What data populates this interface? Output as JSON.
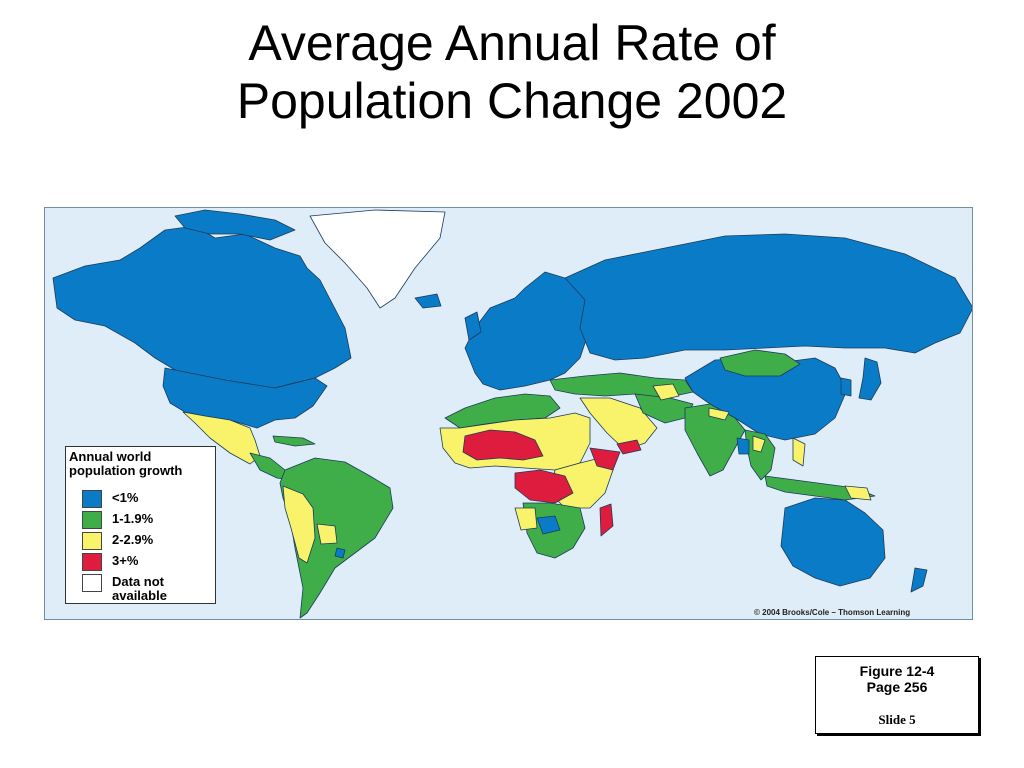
{
  "slide": {
    "title_line1": "Average Annual Rate of",
    "title_line2": "Population Change 2002"
  },
  "map": {
    "ocean_color": "#deedf8",
    "legend": {
      "title_line1": "Annual world",
      "title_line2": "population growth",
      "items": [
        {
          "label": "<1%",
          "color": "#0a7cc7"
        },
        {
          "label": "1-1.9%",
          "color": "#3fae49"
        },
        {
          "label": "2-2.9%",
          "color": "#f9f36b"
        },
        {
          "label": "3+%",
          "color": "#de1c3d"
        },
        {
          "label_line1": "Data not",
          "label_line2": "available",
          "color": "#ffffff"
        }
      ]
    },
    "copyright": "© 2004 Brooks/Cole – Thomson Learning"
  },
  "figure": {
    "line1": "Figure 12-4",
    "line2": "Page 256",
    "slide": "Slide 5"
  }
}
